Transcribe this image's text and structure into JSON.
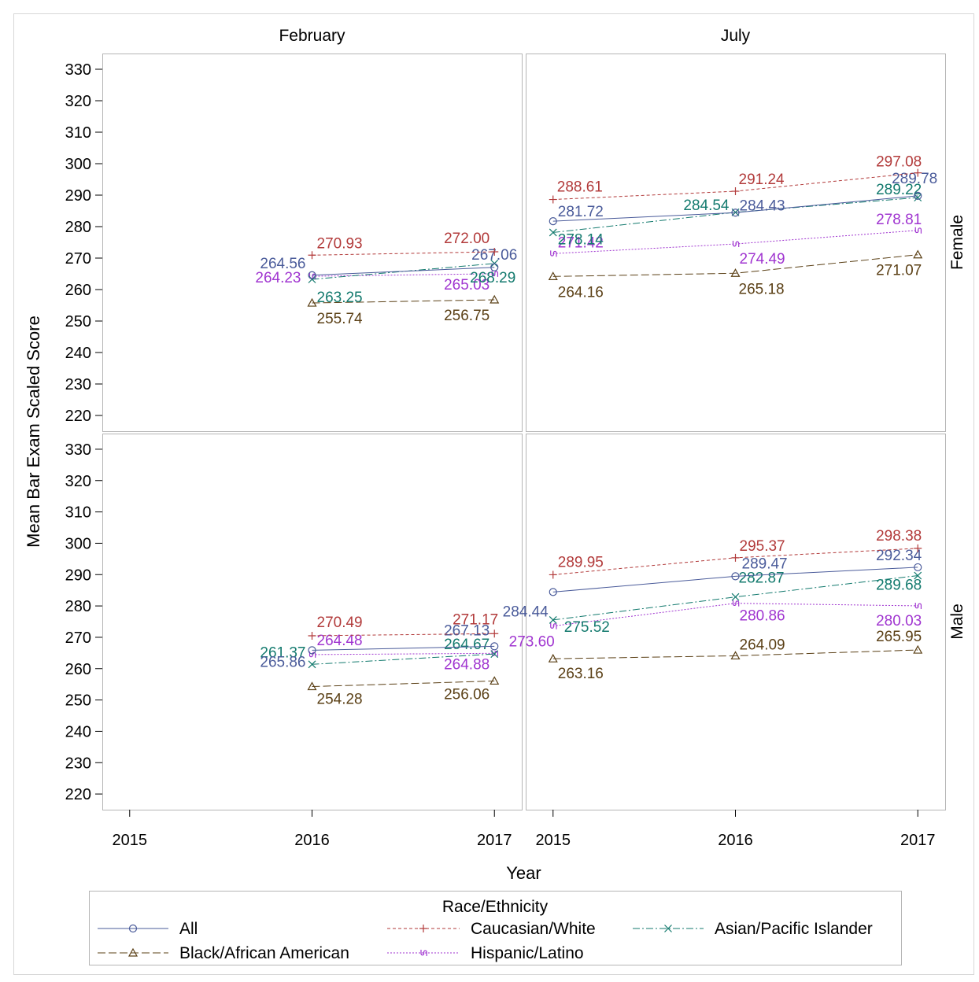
{
  "chart_data": {
    "type": "line",
    "ylabel": "Mean Bar Exam Scaled Score",
    "xlabel": "Year",
    "ylim": [
      215,
      335
    ],
    "yticks": [
      220,
      230,
      240,
      250,
      260,
      270,
      280,
      290,
      300,
      310,
      320,
      330
    ],
    "xlim": [
      2014.85,
      2017.15
    ],
    "xticks": [
      2015,
      2016,
      2017
    ],
    "grid": false,
    "columns": [
      "February",
      "July"
    ],
    "rows": [
      "Female",
      "Male"
    ],
    "legend": {
      "title": "Race/Ethnicity",
      "placement": "bottom"
    },
    "series": [
      {
        "name": "All",
        "color": "#4a5b9a",
        "dash": "none",
        "marker": "circle"
      },
      {
        "name": "Caucasian/White",
        "color": "#b23a3a",
        "dash": "4,3",
        "marker": "plus"
      },
      {
        "name": "Asian/Pacific Islander",
        "color": "#137a6e",
        "dash": "9,3,2,3",
        "marker": "x"
      },
      {
        "name": "Black/African American",
        "color": "#5b4016",
        "dash": "10,4",
        "marker": "triangle"
      },
      {
        "name": "Hispanic/Latino",
        "color": "#a035d0",
        "dash": "2,2",
        "marker": "hook"
      }
    ],
    "panels": [
      {
        "column": "February",
        "row": "Female",
        "x": [
          2016,
          2017
        ],
        "values": {
          "All": [
            264.56,
            267.06
          ],
          "Caucasian/White": [
            270.93,
            272.0
          ],
          "Asian/Pacific Islander": [
            263.25,
            268.29
          ],
          "Black/African American": [
            255.74,
            256.75
          ],
          "Hispanic/Latino": [
            264.23,
            265.03
          ]
        }
      },
      {
        "column": "July",
        "row": "Female",
        "x": [
          2015,
          2016,
          2017
        ],
        "values": {
          "All": [
            281.72,
            284.43,
            289.78
          ],
          "Caucasian/White": [
            288.61,
            291.24,
            297.08
          ],
          "Asian/Pacific Islander": [
            278.14,
            284.54,
            289.22
          ],
          "Black/African American": [
            264.16,
            265.18,
            271.07
          ],
          "Hispanic/Latino": [
            271.42,
            274.49,
            278.81
          ]
        }
      },
      {
        "column": "February",
        "row": "Male",
        "x": [
          2016,
          2017
        ],
        "values": {
          "All": [
            265.86,
            267.13
          ],
          "Caucasian/White": [
            270.49,
            271.17
          ],
          "Asian/Pacific Islander": [
            261.37,
            264.67
          ],
          "Black/African American": [
            254.28,
            256.06
          ],
          "Hispanic/Latino": [
            264.48,
            264.88
          ]
        }
      },
      {
        "column": "July",
        "row": "Male",
        "x": [
          2015,
          2016,
          2017
        ],
        "values": {
          "All": [
            284.44,
            289.47,
            292.34
          ],
          "Caucasian/White": [
            289.95,
            295.37,
            298.38
          ],
          "Asian/Pacific Islander": [
            275.52,
            282.87,
            289.68
          ],
          "Black/African American": [
            263.16,
            264.09,
            265.95
          ],
          "Hispanic/Latino": [
            273.6,
            280.86,
            280.03
          ]
        }
      }
    ]
  }
}
